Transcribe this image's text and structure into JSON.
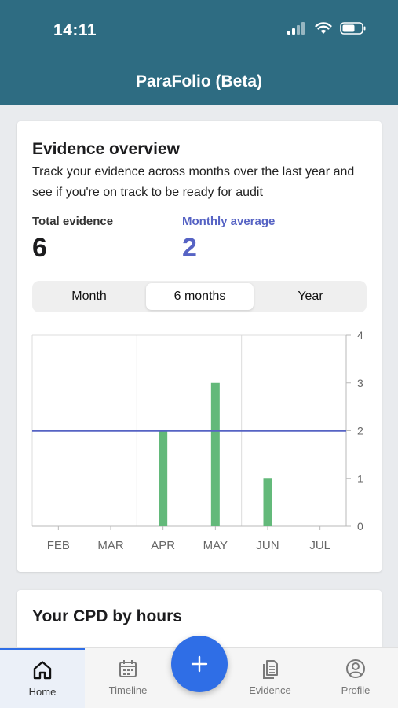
{
  "status_bar": {
    "time": "14:11"
  },
  "header": {
    "title": "ParaFolio (Beta)"
  },
  "overview": {
    "title": "Evidence overview",
    "description": "Track your evidence across months over the last year and see if you're on track to be ready for audit",
    "total_label": "Total evidence",
    "total_value": "6",
    "average_label": "Monthly average",
    "average_value": "2",
    "segments": [
      "Month",
      "6 months",
      "Year"
    ],
    "selected_segment": "6 months"
  },
  "chart_data": {
    "type": "bar",
    "categories": [
      "FEB",
      "MAR",
      "APR",
      "MAY",
      "JUN",
      "JUL"
    ],
    "values": [
      0,
      0,
      2,
      3,
      1,
      0
    ],
    "average_line": 2,
    "ylim": [
      0,
      4
    ],
    "yticks": [
      "0",
      "1",
      "2",
      "3",
      "4"
    ],
    "bar_color": "#63b97a",
    "average_color": "#5663c4",
    "grid": true
  },
  "cpd": {
    "title": "Your CPD by hours"
  },
  "fab": {
    "icon": "plus-icon"
  },
  "tabbar": {
    "items": [
      {
        "label": "Home",
        "icon": "home-icon"
      },
      {
        "label": "Timeline",
        "icon": "calendar-icon"
      },
      {
        "label": "Evidence",
        "icon": "documents-icon"
      },
      {
        "label": "Profile",
        "icon": "profile-icon"
      }
    ],
    "active": "Home"
  },
  "colors": {
    "header": "#2e6c82",
    "accent": "#2f6ee6",
    "average": "#5663c4"
  }
}
